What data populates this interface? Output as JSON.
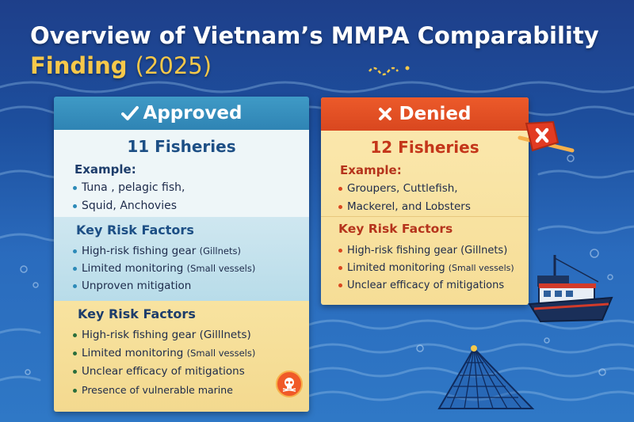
{
  "title": {
    "line1": "Overview of Vietnam’s MMPA Comparability",
    "line2_main": "Finding",
    "line2_year": "(2025)"
  },
  "approved": {
    "header": "Approved",
    "header_icon": "checkmark-icon",
    "count_label": "11 Fisheries",
    "example_label": "Example:",
    "examples": [
      "Tuna , pelagic fish,",
      "Squid, Anchovies"
    ],
    "risk_title": "Key Risk Factors",
    "risks": [
      {
        "main": "High-risk fishing gear",
        "note": "(Gillnets)"
      },
      {
        "main": "Limited monitoring",
        "note": "(Small vessels)"
      },
      {
        "main": "Unproven mitigation",
        "note": ""
      }
    ],
    "risk_title_2": "Key Risk Factors",
    "risks_2": [
      {
        "main": "High-risk fishing gear",
        "note": "(Gilllnets)"
      },
      {
        "main": "Limited monitoring",
        "note": "(Small vessels)"
      },
      {
        "main": "Unclear efficacy of mitigations",
        "note": ""
      },
      {
        "main": "Presence of vulnerable marine",
        "note": ""
      }
    ],
    "colors": {
      "header": "#3a93c2",
      "accent": "#1d4f85"
    }
  },
  "denied": {
    "header": "Denied",
    "header_icon": "x-icon",
    "count_label": "12 Fisheries",
    "example_label": "Example:",
    "examples": [
      "Groupers, Cuttlefish,",
      "Mackerel, and Lobsters"
    ],
    "risk_title": "Key Risk Factors",
    "risks": [
      {
        "main": "High-risk fishing gear",
        "note": "(Gillnets)"
      },
      {
        "main": "Limited monitoring",
        "note": "(Small vessels)"
      },
      {
        "main": "Unclear efficacy of mitigations",
        "note": ""
      }
    ],
    "colors": {
      "header": "#e4512a",
      "accent": "#c4361a"
    }
  },
  "decorations": [
    "fishing-boat-icon",
    "fishing-net-icon",
    "danger-skull-icon",
    "denied-stamp-icon"
  ]
}
